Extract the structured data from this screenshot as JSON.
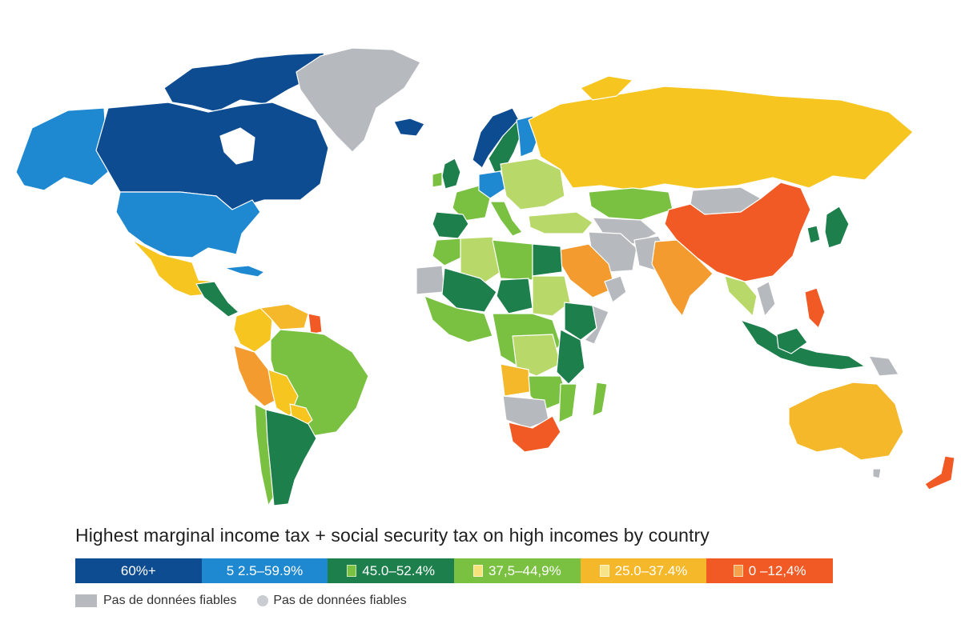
{
  "title": "Highest marginal income tax + social security tax on high incomes by country",
  "colors": {
    "c60": "#0e4c92",
    "c52": "#1e88d0",
    "c45": "#1d7f4c",
    "c37": "#7ac142",
    "c25": "#f5b82a",
    "c0": "#f15a24",
    "nodata": "#b6b9bd",
    "greenLight": "#b9d86a",
    "yellow": "#f6c51f",
    "orange": "#f39b2f"
  },
  "legend": {
    "bins": [
      {
        "label": "60%+",
        "color": "#0e4c92",
        "marker": false
      },
      {
        "label": "5 2.5–59.9%",
        "color": "#1e88d0",
        "marker": false
      },
      {
        "label": "45.0–52.4%",
        "color": "#1d7f4c",
        "marker": true,
        "marker_color": "#7ac142"
      },
      {
        "label": "37,5–44,9%",
        "color": "#7ac142",
        "marker": true,
        "marker_color": "#f6e27a"
      },
      {
        "label": "25.0–37.4%",
        "color": "#f5b82a",
        "marker": true,
        "marker_color": "#f7e48a"
      },
      {
        "label": "0 –12,4%",
        "color": "#f15a24",
        "marker": true,
        "marker_color": "#f5a04a"
      }
    ],
    "nodata": [
      {
        "label": "Pas de données fiables",
        "shape": "square",
        "color": "#b6b9bd"
      },
      {
        "label": "Pas de données fiables",
        "shape": "circle",
        "color": "#c9ccd0"
      }
    ]
  }
}
